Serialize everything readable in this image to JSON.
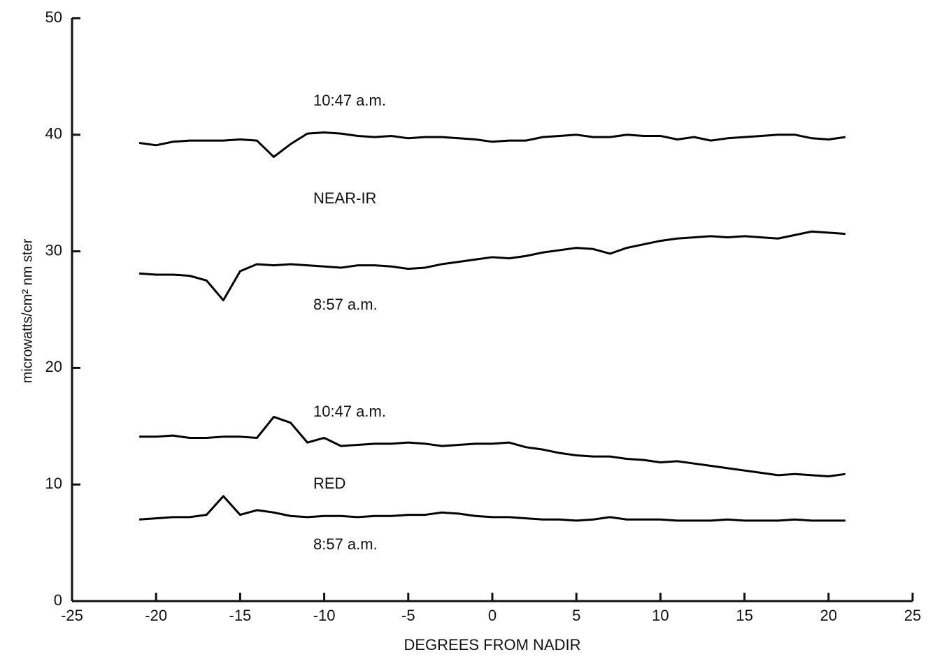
{
  "chart_data": {
    "type": "line",
    "xlabel": "DEGREES FROM NADIR",
    "ylabel": "microwatts/cm² nm ster",
    "annotations": [
      "10:47 a.m.",
      "NEAR-IR",
      "8:57 a.m.",
      "10:47 a.m.",
      "RED",
      "8:57 a.m."
    ],
    "xlim": [
      -25,
      25
    ],
    "xticks": [
      -25,
      -20,
      -15,
      -10,
      -5,
      0,
      5,
      10,
      15,
      20,
      25
    ],
    "ylim": [
      0,
      50
    ],
    "yticks": [
      0,
      10,
      20,
      30,
      40,
      50
    ],
    "grid": false,
    "x": [
      -21,
      -20,
      -19,
      -18,
      -17,
      -16,
      -15,
      -14,
      -13,
      -12,
      -11,
      -10,
      -9,
      -8,
      -7,
      -6,
      -5,
      -4,
      -3,
      -2,
      -1,
      0,
      1,
      2,
      3,
      4,
      5,
      6,
      7,
      8,
      9,
      10,
      11,
      12,
      13,
      14,
      15,
      16,
      17,
      18,
      19,
      20,
      21
    ],
    "series": [
      {
        "color": "#000000",
        "values": [
          39.3,
          39.1,
          39.4,
          39.5,
          39.5,
          39.5,
          39.6,
          39.5,
          38.1,
          39.2,
          40.1,
          40.2,
          40.1,
          39.9,
          39.8,
          39.9,
          39.7,
          39.8,
          39.8,
          39.7,
          39.6,
          39.4,
          39.5,
          39.5,
          39.8,
          39.9,
          40.0,
          39.8,
          39.8,
          40.0,
          39.9,
          39.9,
          39.6,
          39.8,
          39.5,
          39.7,
          39.8,
          39.9,
          40.0,
          40.0,
          39.7,
          39.6,
          39.8
        ]
      },
      {
        "color": "#000000",
        "values": [
          28.1,
          28.0,
          28.0,
          27.9,
          27.5,
          25.8,
          28.3,
          28.9,
          28.8,
          28.9,
          28.8,
          28.7,
          28.6,
          28.8,
          28.8,
          28.7,
          28.5,
          28.6,
          28.9,
          29.1,
          29.3,
          29.5,
          29.4,
          29.6,
          29.9,
          30.1,
          30.3,
          30.2,
          29.8,
          30.3,
          30.6,
          30.9,
          31.1,
          31.2,
          31.3,
          31.2,
          31.3,
          31.2,
          31.1,
          31.4,
          31.7,
          31.6,
          31.5
        ]
      },
      {
        "color": "#000000",
        "values": [
          14.1,
          14.1,
          14.2,
          14.0,
          14.0,
          14.1,
          14.1,
          14.0,
          15.8,
          15.3,
          13.6,
          14.0,
          13.3,
          13.4,
          13.5,
          13.5,
          13.6,
          13.5,
          13.3,
          13.4,
          13.5,
          13.5,
          13.6,
          13.2,
          13.0,
          12.7,
          12.5,
          12.4,
          12.4,
          12.2,
          12.1,
          11.9,
          12.0,
          11.8,
          11.6,
          11.4,
          11.2,
          11.0,
          10.8,
          10.9,
          10.8,
          10.7,
          10.9
        ]
      },
      {
        "color": "#000000",
        "values": [
          7.0,
          7.1,
          7.2,
          7.2,
          7.4,
          9.0,
          7.4,
          7.8,
          7.6,
          7.3,
          7.2,
          7.3,
          7.3,
          7.2,
          7.3,
          7.3,
          7.4,
          7.4,
          7.6,
          7.5,
          7.3,
          7.2,
          7.2,
          7.1,
          7.0,
          7.0,
          6.9,
          7.0,
          7.2,
          7.0,
          7.0,
          7.0,
          6.9,
          6.9,
          6.9,
          7.0,
          6.9,
          6.9,
          6.9,
          7.0,
          6.9,
          6.9,
          6.9
        ]
      }
    ]
  }
}
